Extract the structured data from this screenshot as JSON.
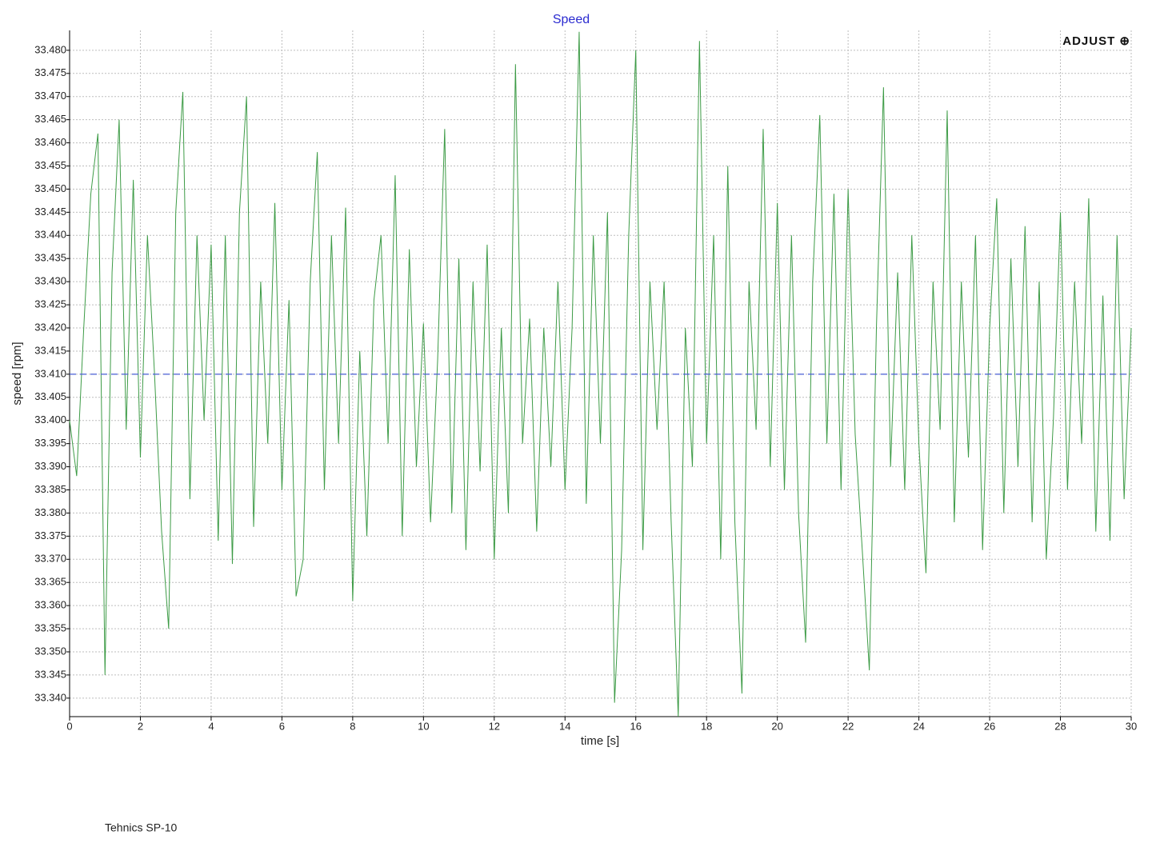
{
  "chart_data": {
    "type": "line",
    "title": "Speed",
    "xlabel": "time [s]",
    "ylabel": "speed [rpm]",
    "brand": "ADJUST ⊕",
    "footer": "Tehnics SP-10",
    "xlim": [
      0,
      30
    ],
    "xticks": [
      0,
      2,
      4,
      6,
      8,
      10,
      12,
      14,
      16,
      18,
      20,
      22,
      24,
      26,
      28,
      30
    ],
    "ylim": [
      33.336,
      33.4843
    ],
    "yticks": [
      {
        "value": 33.34,
        "label": "33.340"
      },
      33.345,
      {
        "value": 33.35,
        "label": "33.350"
      },
      33.355,
      {
        "value": 33.36,
        "label": "33.360"
      },
      33.365,
      {
        "value": 33.37,
        "label": "33.370"
      },
      33.375,
      {
        "value": 33.38,
        "label": "33.380"
      },
      33.385,
      {
        "value": 33.39,
        "label": "33.390"
      },
      33.395,
      {
        "value": 33.4,
        "label": "33.400"
      },
      33.405,
      {
        "value": 33.41,
        "label": "33.410"
      },
      33.415,
      {
        "value": 33.42,
        "label": "33.420"
      },
      33.425,
      {
        "value": 33.43,
        "label": "33.430"
      },
      33.435,
      {
        "value": 33.44,
        "label": "33.440"
      },
      33.445,
      {
        "value": 33.45,
        "label": "33.450"
      },
      33.455,
      {
        "value": 33.46,
        "label": "33.460"
      },
      33.465,
      {
        "value": 33.47,
        "label": "33.470"
      },
      33.475,
      {
        "value": 33.48,
        "label": "33.480"
      }
    ],
    "grid": true,
    "reference_line": 33.41,
    "reference_color": "#4a5fd6",
    "x": [
      0,
      0.2,
      0.4,
      0.6,
      0.8,
      1,
      1.2,
      1.4,
      1.6,
      1.8,
      2,
      2.2,
      2.4,
      2.6,
      2.8,
      3,
      3.2,
      3.4,
      3.6,
      3.8,
      4,
      4.2,
      4.4,
      4.6,
      4.8,
      5,
      5.2,
      5.4,
      5.6,
      5.8,
      6,
      6.2,
      6.4,
      6.6,
      6.8,
      7,
      7.2,
      7.4,
      7.6,
      7.8,
      8,
      8.2,
      8.4,
      8.6,
      8.8,
      9,
      9.2,
      9.4,
      9.6,
      9.8,
      10,
      10.2,
      10.4,
      10.6,
      10.8,
      11,
      11.2,
      11.4,
      11.6,
      11.8,
      12,
      12.2,
      12.4,
      12.6,
      12.8,
      13,
      13.2,
      13.4,
      13.6,
      13.8,
      14,
      14.2,
      14.4,
      14.6,
      14.8,
      15,
      15.2,
      15.4,
      15.6,
      15.8,
      16,
      16.2,
      16.4,
      16.6,
      16.8,
      17,
      17.2,
      17.4,
      17.6,
      17.8,
      18,
      18.2,
      18.4,
      18.6,
      18.8,
      19,
      19.2,
      19.4,
      19.6,
      19.8,
      20,
      20.2,
      20.4,
      20.6,
      20.8,
      21,
      21.2,
      21.4,
      21.6,
      21.8,
      22,
      22.2,
      22.4,
      22.6,
      22.8,
      23,
      23.2,
      23.4,
      23.6,
      23.8,
      24,
      24.2,
      24.4,
      24.6,
      24.8,
      25,
      25.2,
      25.4,
      25.6,
      25.8,
      26,
      26.2,
      26.4,
      26.6,
      26.8,
      27,
      27.2,
      27.4,
      27.6,
      27.8,
      28,
      28.2,
      28.4,
      28.6,
      28.8,
      29,
      29.2,
      29.4,
      29.6,
      29.8,
      30
    ],
    "series": [
      {
        "name": "speed",
        "color": "#3d9b46",
        "values": [
          33.4,
          33.388,
          33.42,
          33.449,
          33.462,
          33.345,
          33.432,
          33.465,
          33.398,
          33.452,
          33.392,
          33.44,
          33.41,
          33.376,
          33.355,
          33.445,
          33.471,
          33.383,
          33.44,
          33.4,
          33.438,
          33.374,
          33.44,
          33.369,
          33.445,
          33.47,
          33.377,
          33.43,
          33.395,
          33.447,
          33.385,
          33.426,
          33.362,
          33.37,
          33.43,
          33.458,
          33.385,
          33.44,
          33.395,
          33.446,
          33.361,
          33.415,
          33.375,
          33.426,
          33.44,
          33.395,
          33.453,
          33.375,
          33.437,
          33.39,
          33.421,
          33.378,
          33.413,
          33.463,
          33.38,
          33.435,
          33.372,
          33.43,
          33.389,
          33.438,
          33.37,
          33.42,
          33.38,
          33.477,
          33.395,
          33.422,
          33.376,
          33.42,
          33.39,
          33.43,
          33.385,
          33.42,
          33.484,
          33.382,
          33.44,
          33.395,
          33.445,
          33.339,
          33.372,
          33.44,
          33.48,
          33.372,
          33.43,
          33.398,
          33.43,
          33.378,
          33.336,
          33.42,
          33.39,
          33.482,
          33.395,
          33.44,
          33.37,
          33.455,
          33.378,
          33.341,
          33.43,
          33.398,
          33.463,
          33.39,
          33.447,
          33.385,
          33.44,
          33.38,
          33.352,
          33.43,
          33.466,
          33.395,
          33.449,
          33.385,
          33.45,
          33.397,
          33.372,
          33.346,
          33.42,
          33.472,
          33.39,
          33.432,
          33.385,
          33.44,
          33.395,
          33.367,
          33.43,
          33.398,
          33.467,
          33.378,
          33.43,
          33.392,
          33.44,
          33.372,
          33.42,
          33.448,
          33.38,
          33.435,
          33.39,
          33.442,
          33.378,
          33.43,
          33.37,
          33.4,
          33.445,
          33.385,
          33.43,
          33.395,
          33.448,
          33.376,
          33.427,
          33.374,
          33.44,
          33.383,
          33.42
        ]
      }
    ]
  }
}
